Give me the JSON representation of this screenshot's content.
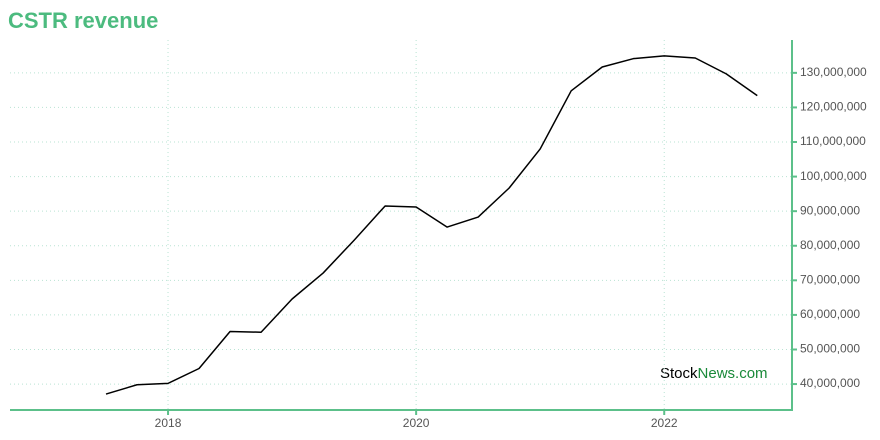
{
  "chart_data": {
    "type": "line",
    "title": "CSTR revenue",
    "watermark": [
      "Stock",
      "News.com"
    ],
    "x": [
      2017.5,
      2017.75,
      2018.0,
      2018.25,
      2018.5,
      2018.75,
      2019.0,
      2019.25,
      2019.5,
      2019.75,
      2020.0,
      2020.25,
      2020.5,
      2020.75,
      2021.0,
      2021.25,
      2021.5,
      2021.75,
      2022.0,
      2022.25,
      2022.5,
      2022.75
    ],
    "values": [
      37100000,
      39800000,
      40200000,
      44500000,
      55200000,
      55000000,
      64600000,
      72100000,
      81600000,
      91500000,
      91200000,
      85400000,
      88300000,
      96700000,
      108000000,
      124800000,
      131700000,
      134100000,
      134900000,
      134300000,
      129700000,
      123400000
    ],
    "color": "#000000",
    "xlim": [
      2016.726,
      2023.03
    ],
    "xticks": [
      2018,
      2020,
      2022
    ],
    "ylim": [
      32500000,
      139500000
    ],
    "yticks": [
      {
        "value": 40000000,
        "label": "40,000,000"
      },
      {
        "value": 50000000,
        "label": "50,000,000"
      },
      {
        "value": 60000000,
        "label": "60,000,000"
      },
      {
        "value": 70000000,
        "label": "70,000,000"
      },
      {
        "value": 80000000,
        "label": "80,000,000"
      },
      {
        "value": 90000000,
        "label": "90,000,000"
      },
      {
        "value": 100000000,
        "label": "100,000,000"
      },
      {
        "value": 110000000,
        "label": "110,000,000"
      },
      {
        "value": 120000000,
        "label": "120,000,000"
      },
      {
        "value": 130000000,
        "label": "130,000,000"
      }
    ],
    "grid": true
  }
}
